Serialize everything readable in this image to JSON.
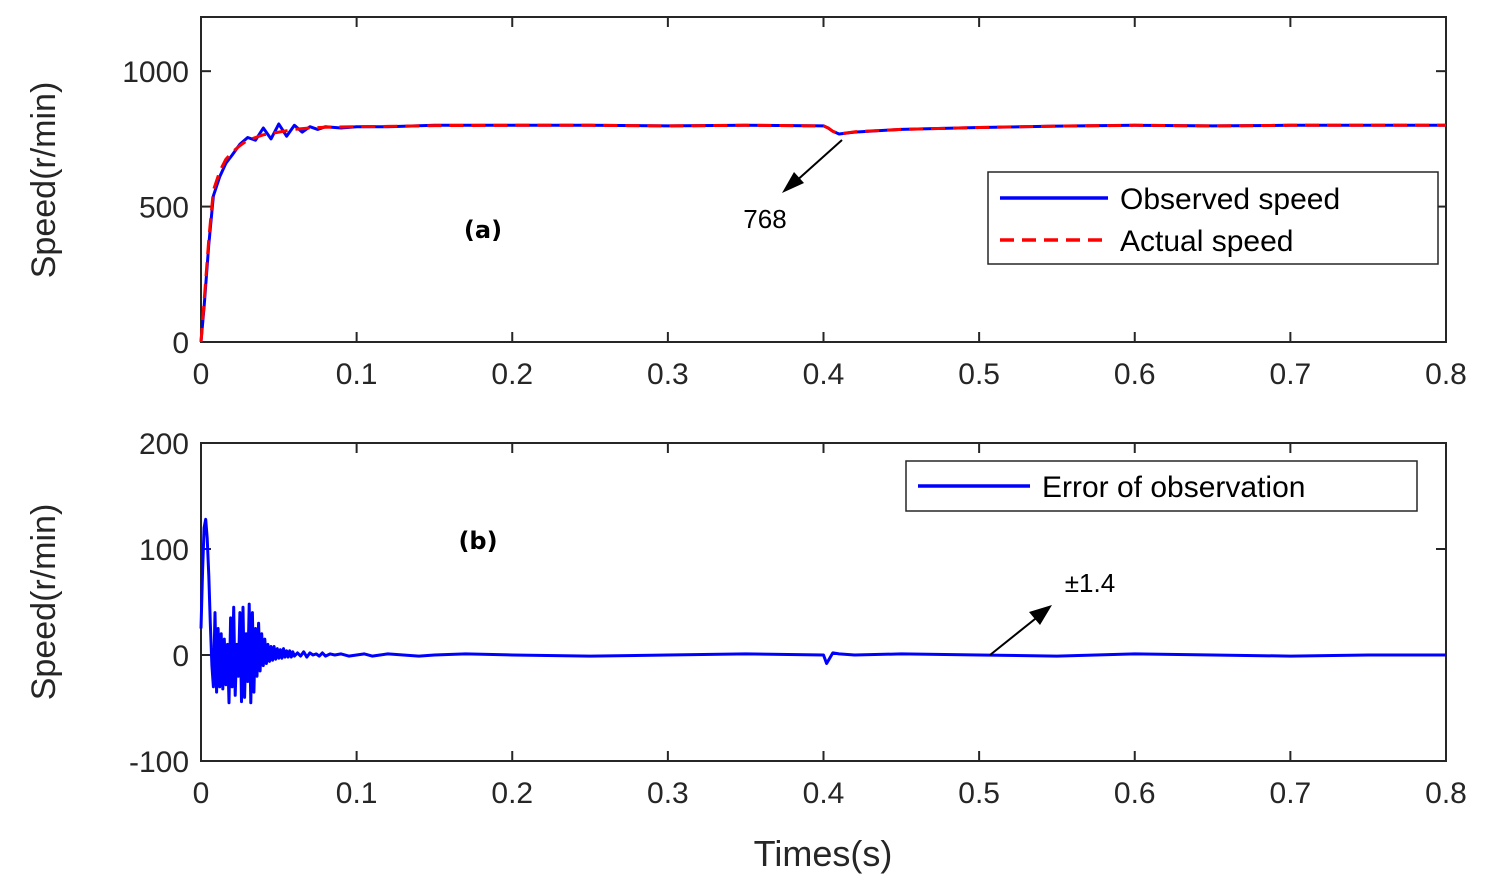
{
  "chart_data": [
    {
      "id": "a",
      "type": "line",
      "panel_label": "(a)",
      "ylabel": "Speed(r/min)",
      "xlim": [
        0,
        0.8
      ],
      "ylim": [
        0,
        1200
      ],
      "xticks": [
        0,
        0.1,
        0.2,
        0.3,
        0.4,
        0.5,
        0.6,
        0.7,
        0.8
      ],
      "xtick_labels": [
        "0",
        "0.1",
        "0.2",
        "0.3",
        "0.4",
        "0.5",
        "0.6",
        "0.7",
        "0.8"
      ],
      "yticks": [
        0,
        500,
        1000
      ],
      "ytick_labels": [
        "0",
        "500",
        "1000"
      ],
      "legend_position": "right",
      "series": [
        {
          "name": "Observed speed",
          "color": "#0000ff",
          "style": "solid",
          "x": [
            0,
            0.002,
            0.005,
            0.008,
            0.012,
            0.016,
            0.02,
            0.025,
            0.03,
            0.035,
            0.04,
            0.045,
            0.05,
            0.055,
            0.06,
            0.065,
            0.07,
            0.075,
            0.08,
            0.09,
            0.1,
            0.12,
            0.15,
            0.2,
            0.25,
            0.3,
            0.35,
            0.4,
            0.403,
            0.406,
            0.41,
            0.42,
            0.45,
            0.5,
            0.55,
            0.6,
            0.65,
            0.7,
            0.75,
            0.8
          ],
          "values": [
            0,
            130,
            360,
            540,
            610,
            660,
            690,
            730,
            755,
            745,
            790,
            750,
            805,
            760,
            800,
            775,
            795,
            785,
            795,
            790,
            795,
            795,
            800,
            800,
            800,
            798,
            800,
            798,
            790,
            778,
            768,
            775,
            785,
            792,
            797,
            800,
            798,
            800,
            800,
            800
          ]
        },
        {
          "name": "Actual speed",
          "color": "#ff0000",
          "style": "dashed",
          "x": [
            0,
            0.002,
            0.005,
            0.008,
            0.012,
            0.016,
            0.02,
            0.025,
            0.03,
            0.035,
            0.04,
            0.05,
            0.06,
            0.07,
            0.08,
            0.1,
            0.12,
            0.15,
            0.2,
            0.25,
            0.3,
            0.35,
            0.4,
            0.403,
            0.406,
            0.41,
            0.42,
            0.45,
            0.5,
            0.55,
            0.6,
            0.65,
            0.7,
            0.75,
            0.8
          ],
          "values": [
            0,
            150,
            380,
            560,
            630,
            675,
            700,
            725,
            745,
            755,
            765,
            775,
            785,
            790,
            793,
            795,
            796,
            799,
            800,
            800,
            798,
            800,
            798,
            790,
            778,
            768,
            776,
            785,
            792,
            797,
            800,
            798,
            800,
            800,
            800
          ]
        }
      ],
      "annotations": [
        {
          "text": "768",
          "x": 0.41,
          "y": 768
        }
      ]
    },
    {
      "id": "b",
      "type": "line",
      "panel_label": "(b)",
      "ylabel": "Speed(r/min)",
      "xlabel": "Times(s)",
      "xlim": [
        0,
        0.8
      ],
      "ylim": [
        -100,
        200
      ],
      "xticks": [
        0,
        0.1,
        0.2,
        0.3,
        0.4,
        0.5,
        0.6,
        0.7,
        0.8
      ],
      "xtick_labels": [
        "0",
        "0.1",
        "0.2",
        "0.3",
        "0.4",
        "0.5",
        "0.6",
        "0.7",
        "0.8"
      ],
      "yticks": [
        -100,
        0,
        100,
        200
      ],
      "ytick_labels": [
        "-100",
        "0",
        "100",
        "200"
      ],
      "legend_position": "top-right",
      "series": [
        {
          "name": "Error of observation",
          "color": "#0000ff",
          "style": "solid",
          "x": [
            0,
            0.001,
            0.002,
            0.003,
            0.004,
            0.005,
            0.006,
            0.007,
            0.008,
            0.009,
            0.01,
            0.011,
            0.012,
            0.013,
            0.014,
            0.015,
            0.016,
            0.017,
            0.018,
            0.019,
            0.02,
            0.021,
            0.022,
            0.023,
            0.024,
            0.025,
            0.026,
            0.027,
            0.028,
            0.029,
            0.03,
            0.031,
            0.032,
            0.033,
            0.034,
            0.035,
            0.036,
            0.037,
            0.038,
            0.039,
            0.04,
            0.041,
            0.042,
            0.043,
            0.044,
            0.045,
            0.046,
            0.047,
            0.048,
            0.049,
            0.05,
            0.051,
            0.052,
            0.053,
            0.054,
            0.055,
            0.056,
            0.057,
            0.058,
            0.059,
            0.06,
            0.062,
            0.064,
            0.066,
            0.068,
            0.07,
            0.072,
            0.074,
            0.076,
            0.078,
            0.08,
            0.083,
            0.086,
            0.09,
            0.095,
            0.1,
            0.105,
            0.11,
            0.115,
            0.12,
            0.13,
            0.14,
            0.15,
            0.17,
            0.2,
            0.25,
            0.3,
            0.35,
            0.4,
            0.402,
            0.404,
            0.406,
            0.41,
            0.42,
            0.45,
            0.5,
            0.55,
            0.6,
            0.65,
            0.7,
            0.75,
            0.8
          ],
          "values": [
            25,
            80,
            120,
            128,
            110,
            75,
            30,
            -10,
            -30,
            40,
            -35,
            25,
            -30,
            20,
            -32,
            15,
            -28,
            10,
            -45,
            35,
            -30,
            45,
            -38,
            10,
            -20,
            40,
            -44,
            45,
            -40,
            20,
            -25,
            48,
            -45,
            40,
            -35,
            25,
            -20,
            30,
            -15,
            20,
            -10,
            15,
            -8,
            10,
            -6,
            8,
            -5,
            8,
            -4,
            6,
            -3,
            5,
            -3,
            6,
            -2,
            4,
            -2,
            4,
            -2,
            3,
            -1,
            2,
            -1,
            3,
            -2,
            2,
            0,
            1,
            -1,
            2,
            -1,
            1,
            0,
            1,
            -1,
            0,
            1,
            -1,
            0,
            1,
            0,
            -1,
            0,
            1,
            0,
            -1,
            0,
            1,
            0,
            -8,
            -3,
            2,
            1,
            0,
            1,
            0,
            -1,
            1,
            0,
            -1,
            0,
            0
          ]
        }
      ],
      "annotations": [
        {
          "text": "±1.4",
          "x": 0.505,
          "y": 0
        }
      ]
    }
  ]
}
